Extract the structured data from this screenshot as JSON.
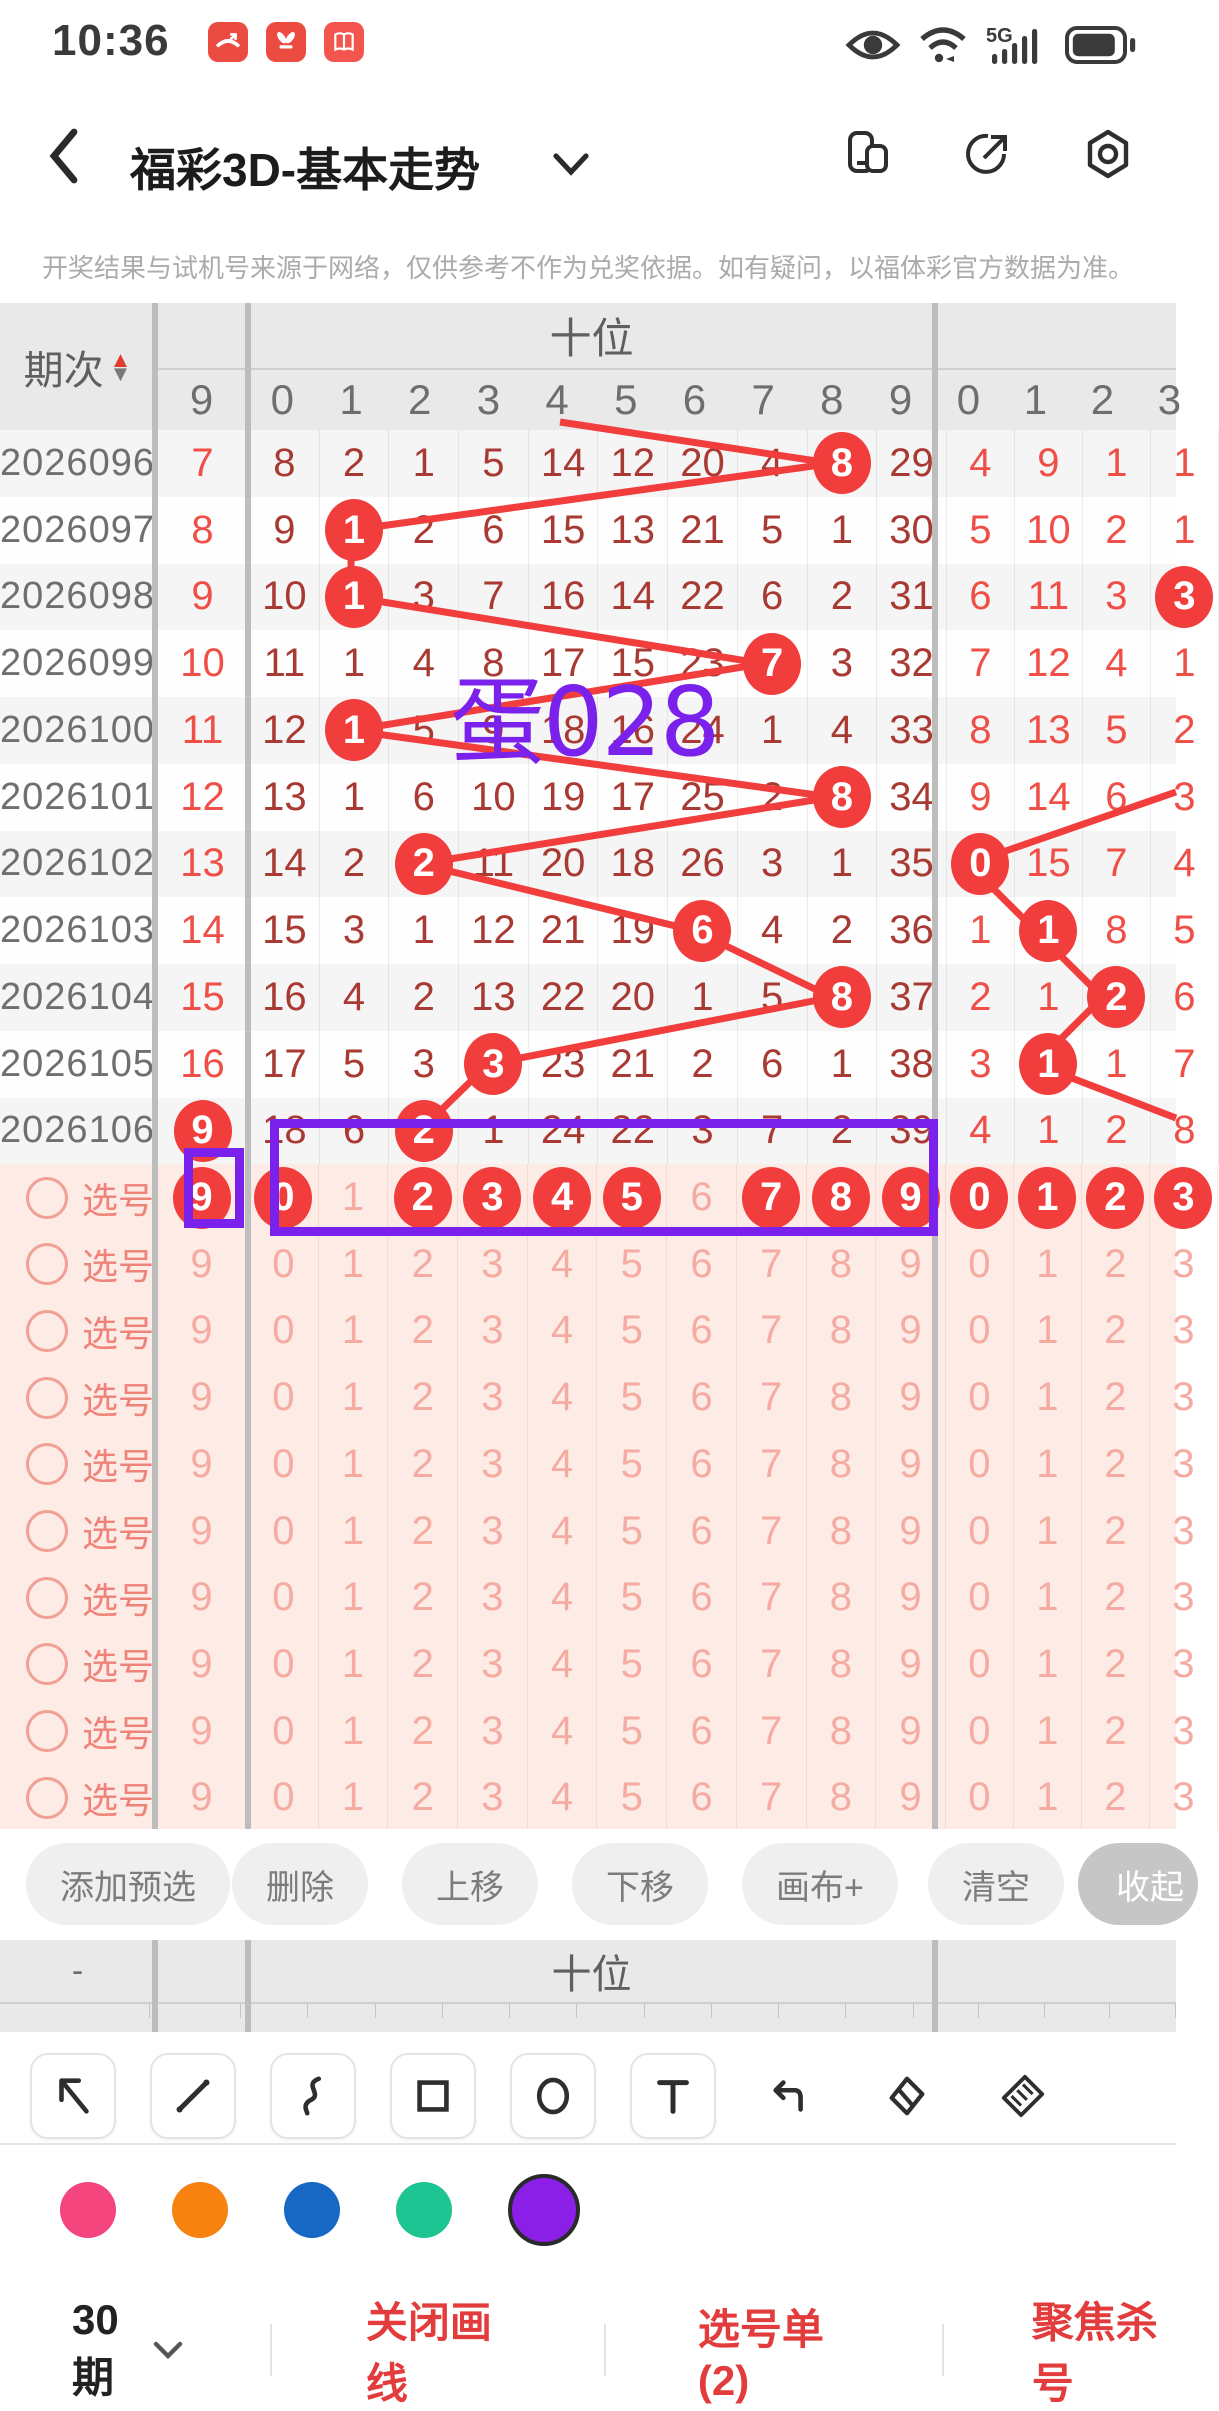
{
  "status_bar": {
    "time": "10:36",
    "app_icons": [
      "missed-call-app",
      "huawei-app",
      "reader-app"
    ],
    "right_icons": [
      "eye-icon",
      "wifi-icon",
      "5g-signal-icon",
      "battery-icon"
    ],
    "network_label": "5G"
  },
  "nav": {
    "title": "福彩3D-基本走势",
    "right_icons": [
      "multi-window-icon",
      "share-icon",
      "settings-icon"
    ]
  },
  "disclaimer": "开奖结果与试机号来源于网络，仅供参考不作为兑奖依据。如有疑问，以福体彩官方数据为准。",
  "trend_table": {
    "left_header": "期次",
    "group_header": "十位",
    "left9_header": "9",
    "tens_headers": [
      "0",
      "1",
      "2",
      "3",
      "4",
      "5",
      "6",
      "7",
      "8",
      "9"
    ],
    "ones_headers": [
      "0",
      "1",
      "2",
      "3"
    ],
    "rows": [
      {
        "period": "2026096",
        "left9": "7",
        "left9_circled": false,
        "tens": [
          "8",
          "2",
          "1",
          "5",
          "14",
          "12",
          "20",
          "4",
          "8",
          "29"
        ],
        "tens_circled": [
          8
        ],
        "ones": [
          "4",
          "9",
          "1",
          "1"
        ],
        "ones_circled": []
      },
      {
        "period": "2026097",
        "left9": "8",
        "left9_circled": false,
        "tens": [
          "9",
          "1",
          "2",
          "6",
          "15",
          "13",
          "21",
          "5",
          "1",
          "30"
        ],
        "tens_circled": [
          1
        ],
        "ones": [
          "5",
          "10",
          "2",
          "1"
        ],
        "ones_circled": []
      },
      {
        "period": "2026098",
        "left9": "9",
        "left9_circled": false,
        "tens": [
          "10",
          "1",
          "3",
          "7",
          "16",
          "14",
          "22",
          "6",
          "2",
          "31"
        ],
        "tens_circled": [
          1
        ],
        "ones": [
          "6",
          "11",
          "3",
          "3"
        ],
        "ones_circled": [
          3
        ]
      },
      {
        "period": "2026099",
        "left9": "10",
        "left9_circled": false,
        "tens": [
          "11",
          "1",
          "4",
          "8",
          "17",
          "15",
          "23",
          "7",
          "3",
          "32"
        ],
        "tens_circled": [
          7
        ],
        "ones": [
          "7",
          "12",
          "4",
          "1"
        ],
        "ones_circled": []
      },
      {
        "period": "2026100",
        "left9": "11",
        "left9_circled": false,
        "tens": [
          "12",
          "1",
          "5",
          "9",
          "18",
          "16",
          "24",
          "1",
          "4",
          "33"
        ],
        "tens_circled": [
          1
        ],
        "ones": [
          "8",
          "13",
          "5",
          "2"
        ],
        "ones_circled": []
      },
      {
        "period": "2026101",
        "left9": "12",
        "left9_circled": false,
        "tens": [
          "13",
          "1",
          "6",
          "10",
          "19",
          "17",
          "25",
          "2",
          "8",
          "34"
        ],
        "tens_circled": [
          8
        ],
        "ones": [
          "9",
          "14",
          "6",
          "3"
        ],
        "ones_circled": []
      },
      {
        "period": "2026102",
        "left9": "13",
        "left9_circled": false,
        "tens": [
          "14",
          "2",
          "2",
          "11",
          "20",
          "18",
          "26",
          "3",
          "1",
          "35"
        ],
        "tens_circled": [
          2
        ],
        "ones": [
          "0",
          "15",
          "7",
          "4"
        ],
        "ones_circled": [
          0
        ]
      },
      {
        "period": "2026103",
        "left9": "14",
        "left9_circled": false,
        "tens": [
          "15",
          "3",
          "1",
          "12",
          "21",
          "19",
          "6",
          "4",
          "2",
          "36"
        ],
        "tens_circled": [
          6
        ],
        "ones": [
          "1",
          "1",
          "8",
          "5"
        ],
        "ones_circled": [
          1
        ]
      },
      {
        "period": "2026104",
        "left9": "15",
        "left9_circled": false,
        "tens": [
          "16",
          "4",
          "2",
          "13",
          "22",
          "20",
          "1",
          "5",
          "8",
          "37"
        ],
        "tens_circled": [
          8
        ],
        "ones": [
          "2",
          "1",
          "2",
          "6"
        ],
        "ones_circled": [
          2
        ]
      },
      {
        "period": "2026105",
        "left9": "16",
        "left9_circled": false,
        "tens": [
          "17",
          "5",
          "3",
          "3",
          "23",
          "21",
          "2",
          "6",
          "1",
          "38"
        ],
        "tens_circled": [
          3
        ],
        "ones": [
          "3",
          "1",
          "1",
          "7"
        ],
        "ones_circled": [
          1
        ]
      },
      {
        "period": "2026106",
        "left9": "9",
        "left9_circled": true,
        "tens": [
          "18",
          "6",
          "2",
          "1",
          "24",
          "22",
          "3",
          "7",
          "2",
          "39"
        ],
        "tens_circled": [
          2
        ],
        "ones": [
          "4",
          "1",
          "2",
          "8"
        ],
        "ones_circled": []
      }
    ]
  },
  "pick_rows": {
    "label": "选号",
    "count": 10,
    "left9": "9",
    "tens": [
      "0",
      "1",
      "2",
      "3",
      "4",
      "5",
      "6",
      "7",
      "8",
      "9"
    ],
    "ones": [
      "0",
      "1",
      "2",
      "3"
    ],
    "first_row_left9_circled": true,
    "first_row_tens_circled": [
      0,
      2,
      3,
      4,
      5,
      7,
      8,
      9
    ],
    "first_row_ones_circled": [
      0,
      1,
      2,
      3
    ]
  },
  "annotation": {
    "text": "蛋028",
    "color": "#7a22ec"
  },
  "toolbar": {
    "buttons": [
      "添加预选",
      "删除",
      "上移",
      "下移",
      "画布+",
      "清空",
      "收起"
    ]
  },
  "footer_header": {
    "left": "-",
    "group": "十位"
  },
  "draw_tools": [
    "arrow-tool",
    "line-tool",
    "curve-tool",
    "rect-tool",
    "ellipse-tool",
    "text-tool",
    "undo-icon",
    "eraser-icon",
    "brush-icon"
  ],
  "palette": {
    "colors": [
      "#f5457e",
      "#f8820f",
      "#1668c4",
      "#1fc493",
      "#8b1fe8"
    ],
    "selected_index": 4
  },
  "bottom_bar": {
    "periods": "30期",
    "close_draw": "关闭画线",
    "pick_list": "选号单(2)",
    "focus_kill": "聚焦杀号"
  },
  "accent": {
    "red": "#f23d3d",
    "purple": "#7a22ec"
  }
}
